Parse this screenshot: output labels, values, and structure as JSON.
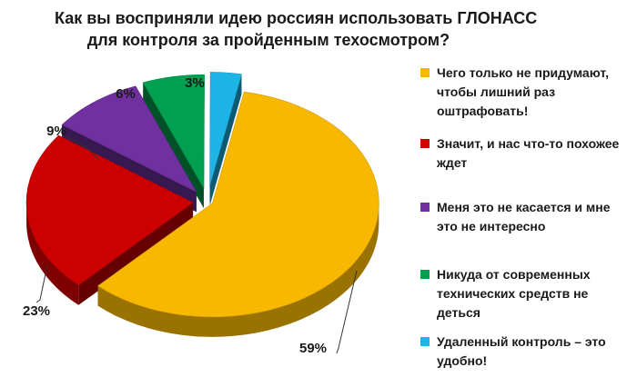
{
  "chart_data": {
    "type": "pie",
    "title_lines": [
      "Как вы восприняли идею россиян использовать ГЛОНАСС",
      "для контроля за пройденным техосмотром?"
    ],
    "categories": [
      "Чего только не придумают, чтобы лишний раз оштрафовать!",
      "Значит, и нас что-то похожее ждет",
      "Меня это не касается и мне это не интересно",
      "Никуда от современных технических средств не деться",
      "Удаленный контроль – это удобно!"
    ],
    "values": [
      59,
      23,
      9,
      6,
      3
    ],
    "value_labels": [
      "59%",
      "23%",
      "9%",
      "6%",
      "3%"
    ],
    "colors": [
      "#F8B800",
      "#CC0000",
      "#7030A0",
      "#00A050",
      "#1EB4E6"
    ],
    "exploded": true,
    "style": "3d",
    "legend_position": "right"
  },
  "legend": {
    "items": [
      {
        "lines": [
          "Чего только не придумают,",
          "чтобы лишний раз",
          "оштрафовать!"
        ]
      },
      {
        "lines": [
          "Значит, и нас что-то похожее",
          "ждет"
        ]
      },
      {
        "lines": [
          "Меня это не касается и мне",
          "это не интересно"
        ]
      },
      {
        "lines": [
          "Никуда от современных",
          "технических средств не",
          "деться"
        ]
      },
      {
        "lines": [
          "Удаленный контроль – это",
          "удобно!"
        ]
      }
    ]
  }
}
